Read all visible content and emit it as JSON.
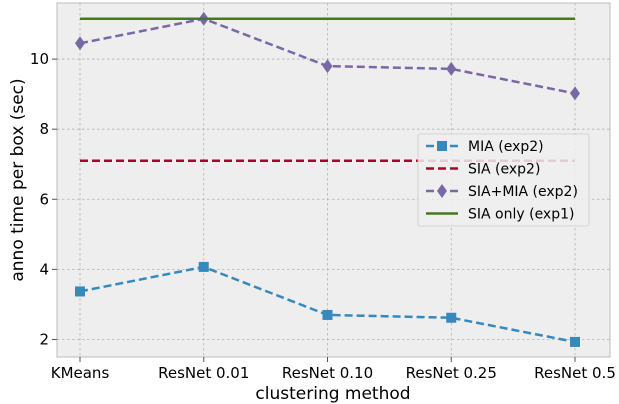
{
  "chart_data": {
    "type": "line",
    "categories": [
      "KMeans",
      "ResNet 0.01",
      "ResNet 0.10",
      "ResNet 0.25",
      "ResNet 0.5"
    ],
    "xlabel": "clustering method",
    "ylabel": "anno time per box (sec)",
    "ylim": [
      1.5,
      11.6
    ],
    "yticks": [
      2,
      4,
      6,
      8,
      10
    ],
    "grid": true,
    "legend_position": "center-right",
    "series": [
      {
        "name": "MIA (exp2)",
        "values": [
          3.37,
          4.07,
          2.7,
          2.62,
          1.93
        ],
        "color": "#348ABD",
        "linestyle": "dashed",
        "marker": "square"
      },
      {
        "name": "SIA (exp2)",
        "values": [
          7.1,
          7.1,
          7.1,
          7.1,
          7.1
        ],
        "color": "#A60628",
        "linestyle": "dashed",
        "marker": "none"
      },
      {
        "name": "SIA+MIA (exp2)",
        "values": [
          10.45,
          11.15,
          9.8,
          9.72,
          9.02
        ],
        "color": "#7A68A6",
        "linestyle": "dashed",
        "marker": "diamond"
      },
      {
        "name": "SIA only (exp1)",
        "values": [
          11.15,
          11.15,
          11.15,
          11.15,
          11.15
        ],
        "color": "#467821",
        "linestyle": "solid",
        "marker": "none"
      }
    ]
  }
}
